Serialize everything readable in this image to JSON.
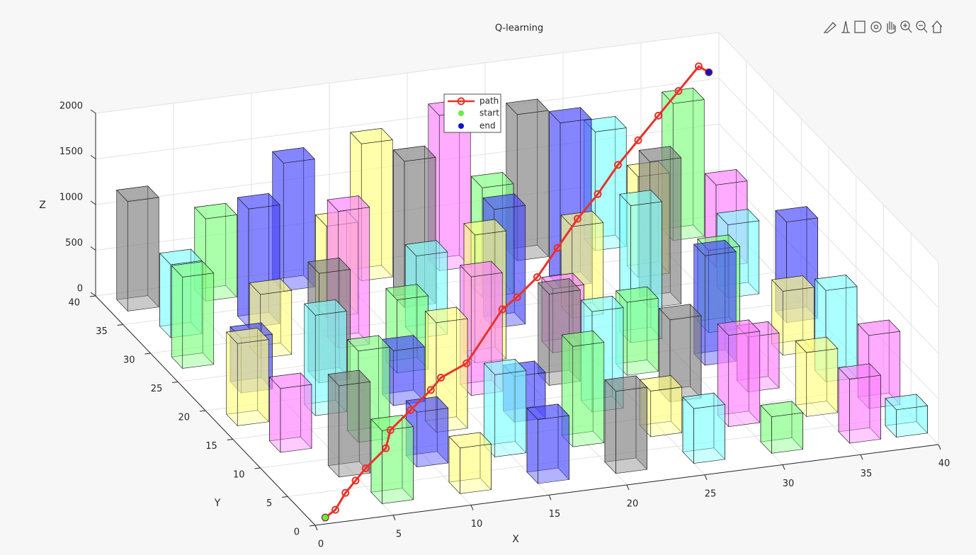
{
  "chart_data": {
    "type": "bar3d",
    "title": "Q-learning",
    "xlabel": "X",
    "ylabel": "Y",
    "zlabel": "Z",
    "xlim": [
      0,
      40
    ],
    "ylim": [
      0,
      40
    ],
    "zlim": [
      0,
      2000
    ],
    "xticks": [
      0,
      5,
      10,
      15,
      20,
      25,
      30,
      35,
      40
    ],
    "yticks": [
      0,
      5,
      10,
      15,
      20,
      25,
      30,
      35,
      40
    ],
    "zticks": [
      0,
      500,
      1000,
      1500,
      2000
    ],
    "grid": true,
    "obstacles": {
      "x": [
        1,
        6,
        11,
        16,
        21,
        26,
        31,
        36,
        2,
        7,
        12,
        17,
        22,
        27,
        32,
        37,
        1,
        6,
        11,
        16,
        21,
        26,
        31,
        36,
        3,
        8,
        13,
        18,
        23,
        28,
        33,
        38,
        1,
        6,
        11,
        16,
        21,
        26,
        31,
        36,
        2,
        7,
        12,
        17,
        22,
        27,
        32,
        37,
        4,
        9,
        14,
        19,
        24,
        29,
        34,
        38,
        5,
        10,
        15,
        20,
        25,
        30,
        35,
        38
      ],
      "y": [
        37,
        37,
        37,
        37,
        37,
        37,
        37,
        37,
        32,
        32,
        32,
        32,
        32,
        32,
        32,
        32,
        27,
        27,
        27,
        27,
        27,
        27,
        27,
        27,
        22,
        22,
        22,
        22,
        22,
        22,
        22,
        22,
        17,
        17,
        17,
        17,
        17,
        17,
        17,
        17,
        12,
        12,
        12,
        12,
        12,
        12,
        12,
        12,
        7,
        7,
        7,
        7,
        7,
        7,
        7,
        7,
        2,
        2,
        2,
        2,
        2,
        2,
        2,
        2
      ],
      "height": [
        1200,
        900,
        1400,
        1500,
        1700,
        1600,
        1300,
        1500,
        800,
        1300,
        1000,
        1600,
        1200,
        1800,
        1100,
        900,
        1000,
        700,
        1500,
        900,
        1300,
        1000,
        1600,
        800,
        600,
        1200,
        800,
        1400,
        700,
        1500,
        900,
        1100,
        900,
        1100,
        600,
        1300,
        1000,
        800,
        1200,
        700,
        700,
        1000,
        1200,
        500,
        1100,
        900,
        600,
        1000,
        1000,
        600,
        900,
        1100,
        500,
        1000,
        700,
        800,
        800,
        500,
        700,
        900,
        600,
        400,
        700,
        300
      ],
      "color": [
        "#808080",
        "#80ff80",
        "#4848ff",
        "#ffff80",
        "#ff80ff",
        "#808080",
        "#80ffff",
        "#80ff80",
        "#80ffff",
        "#4848ff",
        "#ffff80",
        "#808080",
        "#80ff80",
        "#4848ff",
        "#ffff80",
        "#ff80ff",
        "#80ff80",
        "#ffff80",
        "#ff80ff",
        "#80ffff",
        "#4848ff",
        "#ffff80",
        "#808080",
        "#80ffff",
        "#4848ff",
        "#808080",
        "#80ff80",
        "#ffff80",
        "#ff80ff",
        "#80ffff",
        "#80ff80",
        "#4848ff",
        "#ffff80",
        "#80ffff",
        "#4848ff",
        "#ff80ff",
        "#808080",
        "#80ff80",
        "#4848ff",
        "#ffff80",
        "#ff80ff",
        "#80ff80",
        "#ffff80",
        "#4848ff",
        "#80ffff",
        "#808080",
        "#ff80ff",
        "#80ffff",
        "#808080",
        "#4848ff",
        "#80ffff",
        "#80ff80",
        "#ffff80",
        "#ff80ff",
        "#ffff80",
        "#ff80ff",
        "#80ff80",
        "#ffff80",
        "#4848ff",
        "#808080",
        "#80ffff",
        "#80ff80",
        "#ff80ff",
        "#80ffff"
      ]
    },
    "path": {
      "name": "path",
      "color": "#e8322a",
      "x": [
        1,
        2,
        3,
        4,
        5,
        7,
        8,
        10,
        12,
        13,
        15,
        18,
        20,
        22,
        24,
        26,
        28,
        30,
        32,
        34,
        36,
        38,
        39
      ],
      "y": [
        1,
        2,
        3,
        4,
        5,
        7,
        9,
        11,
        13,
        14,
        15,
        17,
        20,
        22,
        24,
        26,
        28,
        30,
        32,
        34,
        36,
        38,
        39
      ],
      "z": [
        0,
        0,
        100,
        150,
        200,
        250,
        300,
        350,
        400,
        450,
        500,
        900,
        800,
        850,
        1000,
        1150,
        1250,
        1400,
        1500,
        1600,
        1700,
        1800,
        1650
      ]
    },
    "start": {
      "name": "start",
      "color": "#66ee44",
      "x": 1,
      "y": 1,
      "z": 0
    },
    "end": {
      "name": "end",
      "color": "#1010cc",
      "x": 39,
      "y": 39,
      "z": 1650
    }
  }
}
